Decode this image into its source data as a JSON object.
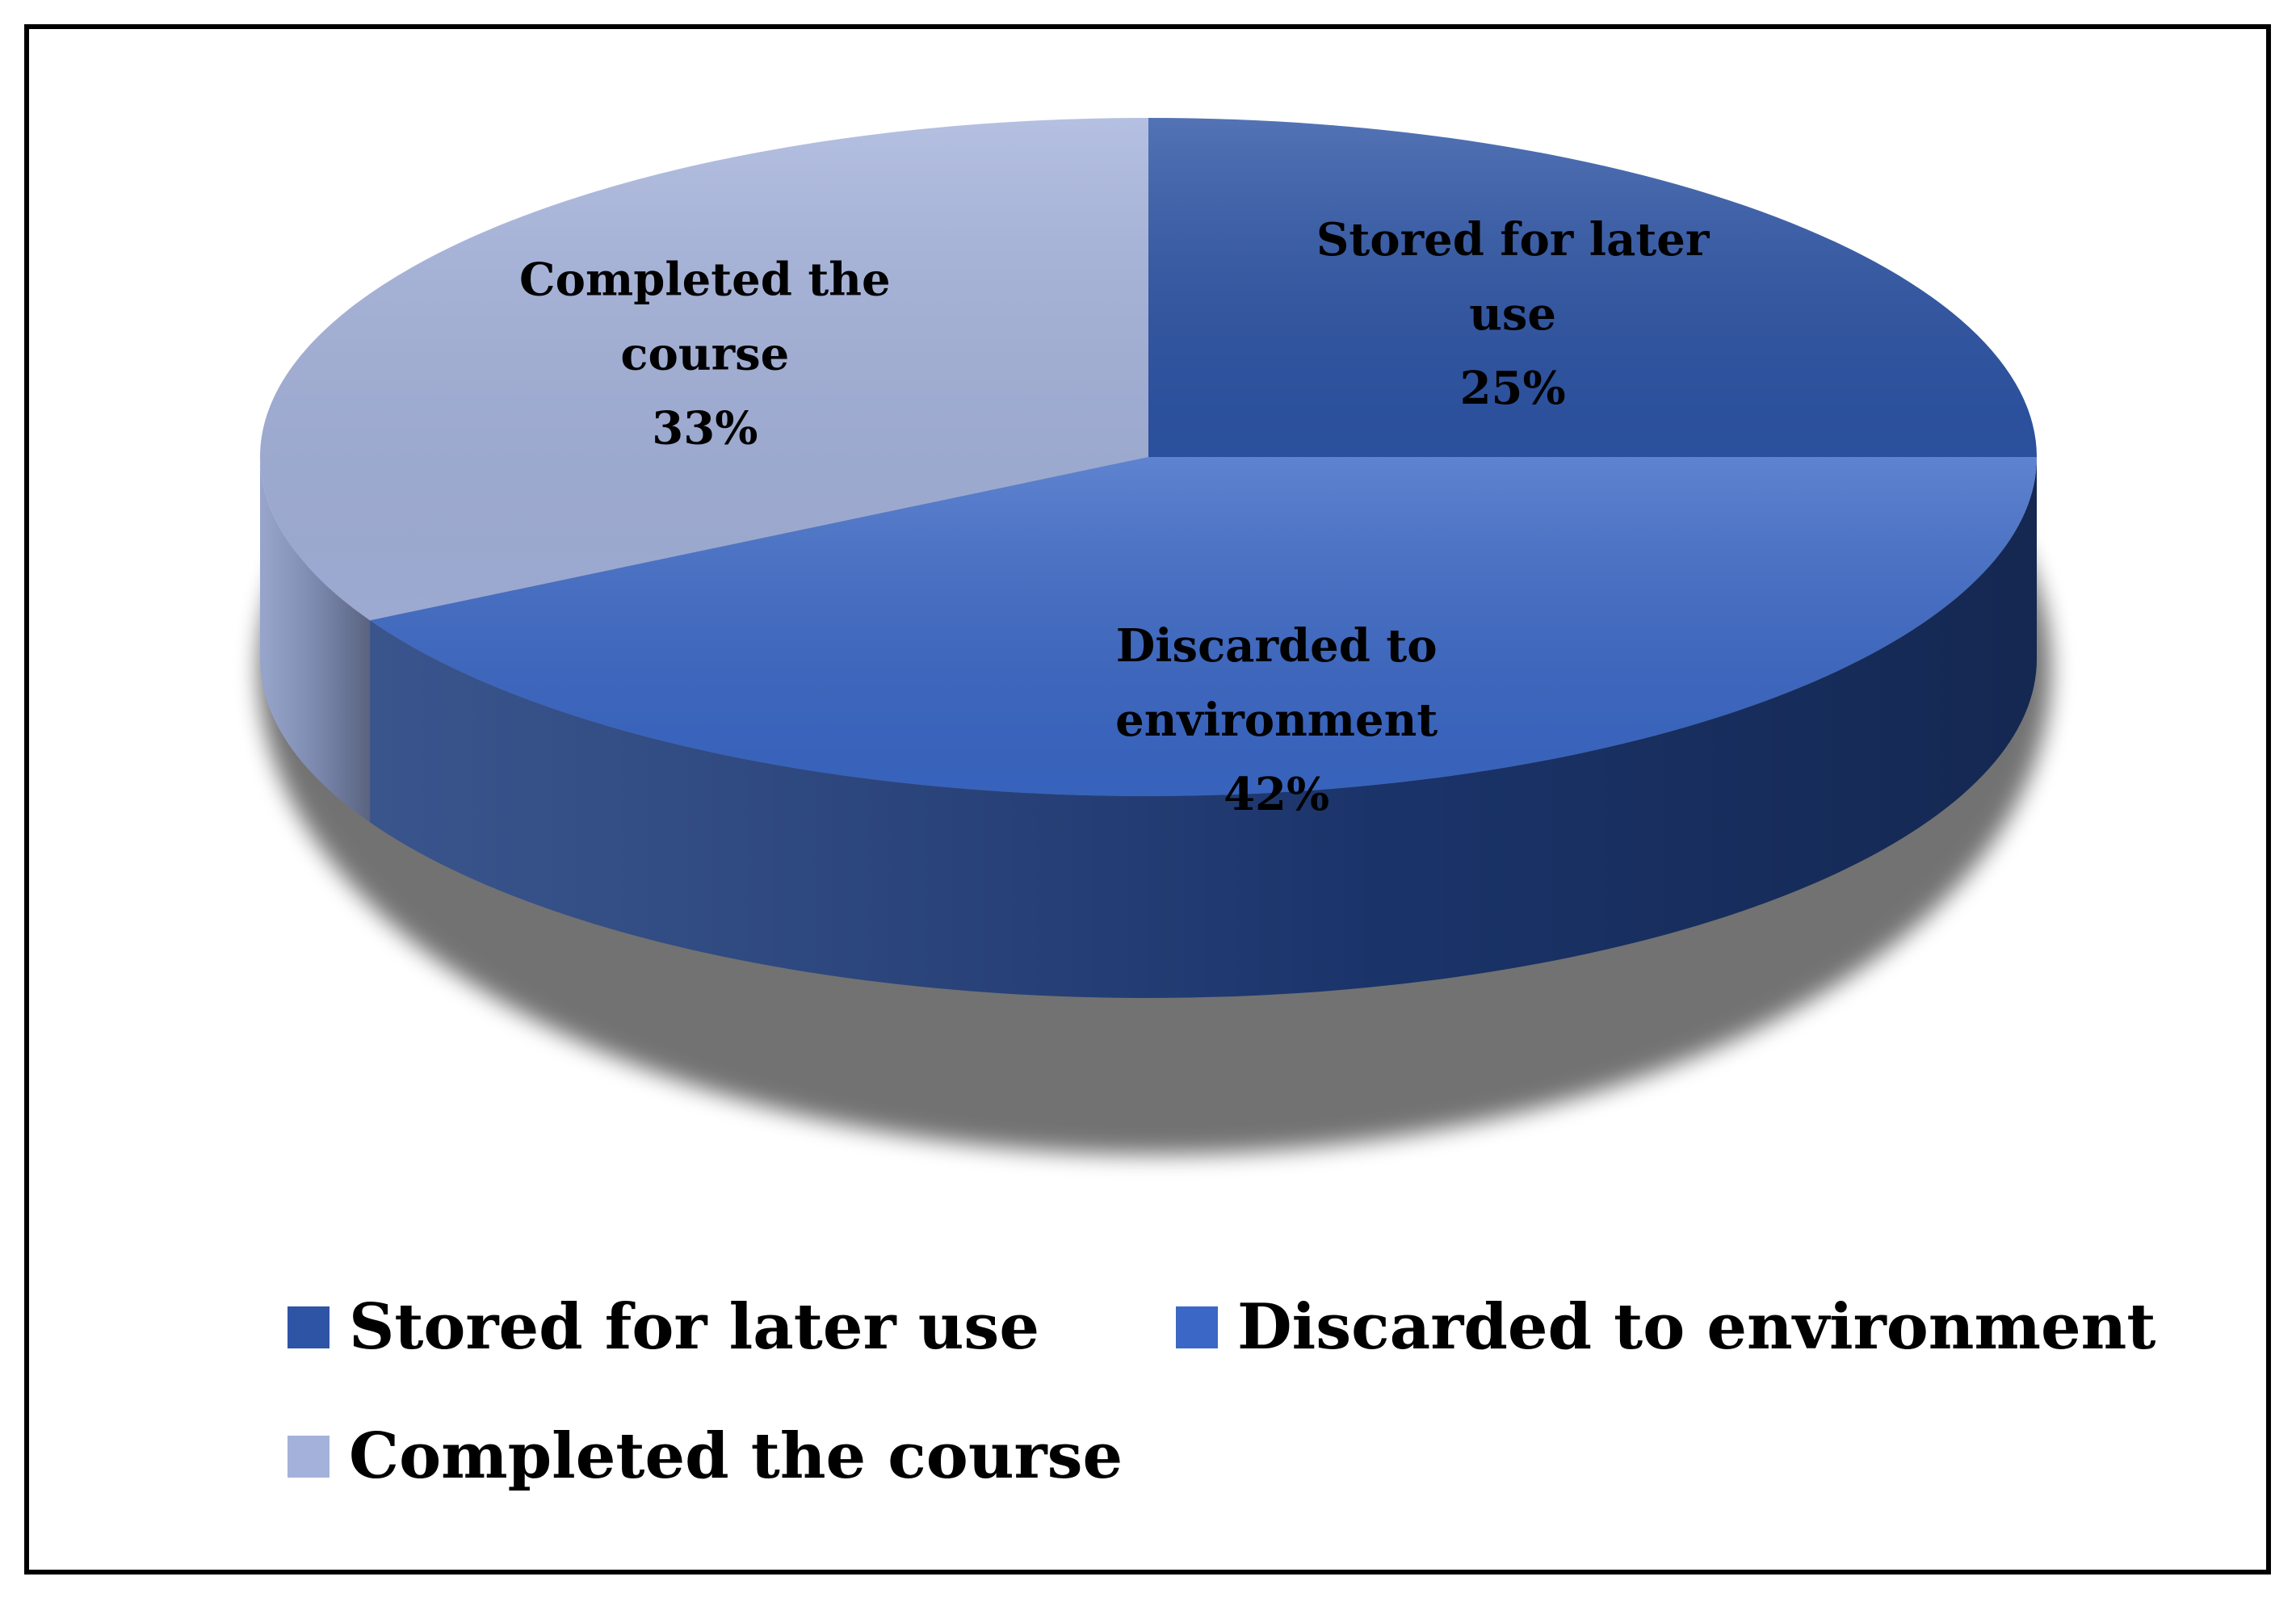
{
  "chart_data": {
    "type": "pie",
    "style": "3d",
    "title": "",
    "legend": "bottom",
    "slices": [
      {
        "label_lines": [
          "Stored for later",
          "use"
        ],
        "value": 25,
        "value_label": "25%",
        "legend_label": "Stored for later use",
        "color": "#2d54a5",
        "side_color": "#1a3366"
      },
      {
        "label_lines": [
          "Discarded to",
          "environment"
        ],
        "value": 42,
        "value_label": "42%",
        "legend_label": "Discarded to environment",
        "color": "#3b68c6",
        "side_color": "#1f3d7d"
      },
      {
        "label_lines": [
          "Completed the",
          "course"
        ],
        "value": 33,
        "value_label": "33%",
        "legend_label": "Completed the course",
        "color": "#a4b2db",
        "side_color": "#8a99c4"
      }
    ]
  }
}
